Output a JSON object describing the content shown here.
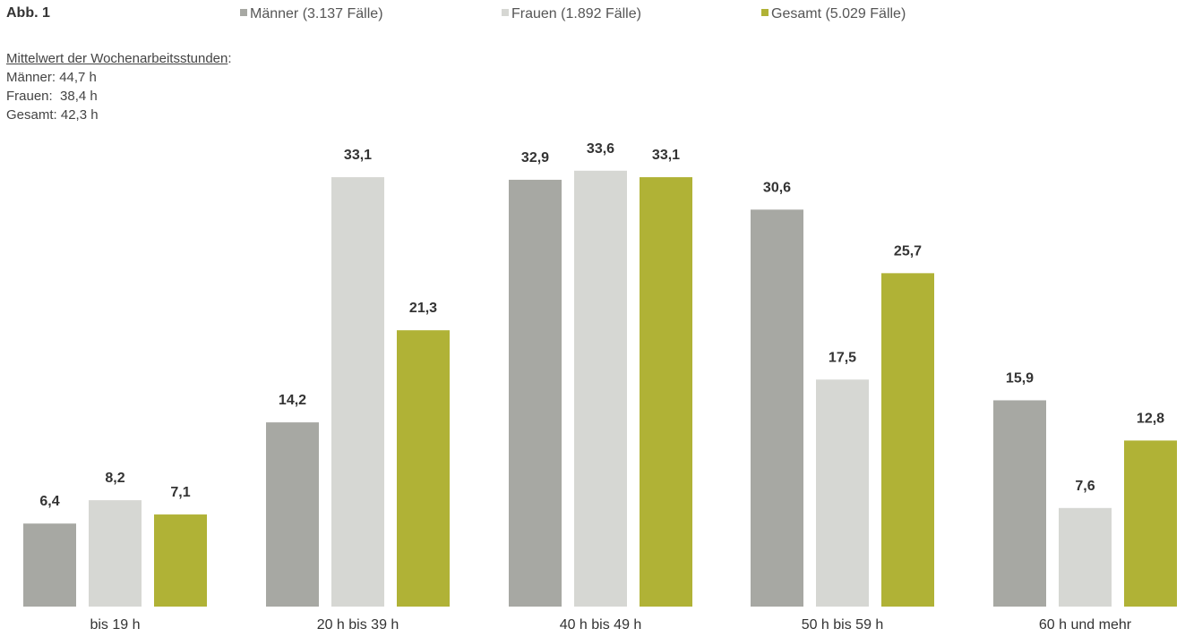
{
  "header": {
    "figure_label": "Abb. 1"
  },
  "legend": [
    {
      "label": "Männer (3.137 Fälle)",
      "color": "#a7a8a3"
    },
    {
      "label": "Frauen (1.892 Fälle)",
      "color": "#d6d7d3"
    },
    {
      "label": "Gesamt (5.029 Fälle)",
      "color": "#b0b236"
    }
  ],
  "mean": {
    "title": "Mittelwert der Wochenarbeitsstunden",
    "title_suffix": ":",
    "lines": [
      "Männer: 44,7 h",
      "Frauen:  38,4 h",
      "Gesamt: 42,3 h"
    ]
  },
  "chart_data": {
    "type": "bar",
    "categories": [
      "bis 19 h",
      "20 h bis 39 h",
      "40 h bis 49 h",
      "50 h bis 59 h",
      "60 h und mehr"
    ],
    "series": [
      {
        "name": "Männer (3.137 Fälle)",
        "color": "#a7a8a3",
        "values": [
          6.4,
          14.2,
          32.9,
          30.6,
          15.9
        ],
        "labels": [
          "6,4",
          "14,2",
          "32,9",
          "30,6",
          "15,9"
        ]
      },
      {
        "name": "Frauen (1.892 Fälle)",
        "color": "#d6d7d3",
        "values": [
          8.2,
          33.1,
          33.6,
          17.5,
          7.6
        ],
        "labels": [
          "8,2",
          "33,1",
          "33,6",
          "17,5",
          "7,6"
        ]
      },
      {
        "name": "Gesamt (5.029 Fälle)",
        "color": "#b0b236",
        "values": [
          7.1,
          21.3,
          33.1,
          25.7,
          12.8
        ],
        "labels": [
          "7,1",
          "21,3",
          "33,1",
          "25,7",
          "12,8"
        ]
      }
    ],
    "title": "",
    "xlabel": "",
    "ylabel": "",
    "ylim": [
      0,
      35
    ],
    "grid": false,
    "legend_position": "top"
  }
}
